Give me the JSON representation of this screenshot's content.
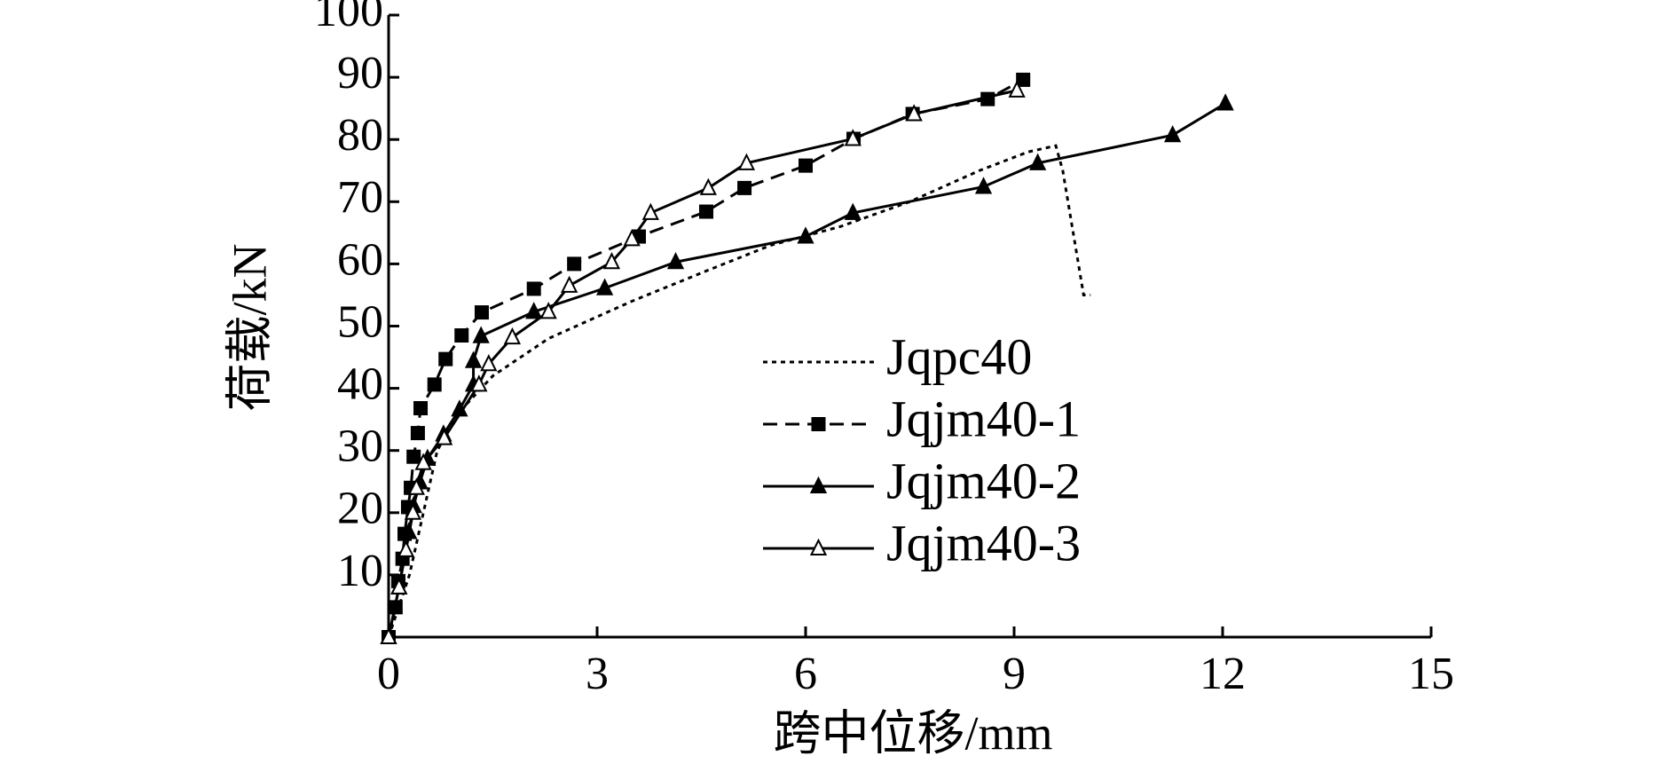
{
  "chart_data": {
    "type": "line",
    "xlabel": "跨中位移/mm",
    "ylabel": "荷载/kN",
    "xlim": [
      0,
      15
    ],
    "xticks": [
      0,
      3,
      6,
      9,
      12,
      15
    ],
    "ylim": [
      0,
      100
    ],
    "yticks": [
      10,
      20,
      30,
      40,
      50,
      60,
      70,
      80,
      90,
      100
    ],
    "legend": "center",
    "series": [
      {
        "name": "Jqpc40",
        "color": "#000000",
        "line_style": "dotted",
        "marker": "none",
        "x": [
          0,
          0.3,
          0.5,
          0.7,
          1.0,
          1.5,
          2.3,
          3.5,
          4.6,
          5.5,
          6.5,
          7.5,
          8.5,
          9.2,
          9.6,
          9.7,
          10.0,
          10.1
        ],
        "values": [
          0,
          10,
          20,
          30,
          36,
          42,
          48,
          54,
          59,
          63,
          66,
          70,
          75,
          78,
          79,
          75,
          55,
          55
        ]
      },
      {
        "name": "Jqjm40-1",
        "color": "#000000",
        "line_style": "dashed",
        "marker": "square",
        "x": [
          0,
          0.1,
          0.14,
          0.2,
          0.23,
          0.28,
          0.32,
          0.36,
          0.42,
          0.46,
          0.66,
          0.82,
          1.05,
          1.34,
          2.09,
          2.67,
          3.6,
          4.57,
          5.12,
          6.0,
          6.69,
          7.54,
          8.62,
          9.13
        ],
        "values": [
          0,
          4.8,
          9,
          12.6,
          16.6,
          20.9,
          24,
          29,
          32.8,
          36.8,
          40.6,
          44.7,
          48.5,
          52.2,
          56,
          60,
          64.4,
          68.4,
          72.2,
          75.8,
          80.1,
          84.1,
          86.5,
          89.6
        ]
      },
      {
        "name": "Jqjm40-2",
        "color": "#000000",
        "line_style": "solid",
        "marker": "triangle",
        "x": [
          0,
          0.15,
          0.29,
          0.36,
          0.45,
          0.56,
          0.79,
          1.02,
          1.22,
          1.22,
          1.33,
          2.09,
          3.11,
          4.13,
          6.0,
          6.68,
          8.56,
          9.34,
          11.28,
          12.04
        ],
        "values": [
          0,
          8,
          16.9,
          21.1,
          24.9,
          28.7,
          32.6,
          36.6,
          40.6,
          44.4,
          48.4,
          52.3,
          56.1,
          60.3,
          64.4,
          68.2,
          72.4,
          76.2,
          80.7,
          85.8
        ]
      },
      {
        "name": "Jqjm40-3",
        "color": "#000000",
        "line_style": "solid",
        "marker": "triangle-open",
        "x": [
          0,
          0.15,
          0.25,
          0.35,
          0.4,
          0.5,
          0.8,
          1.3,
          1.44,
          1.78,
          2.3,
          2.6,
          3.21,
          3.5,
          3.77,
          4.6,
          5.15,
          6.68,
          7.56,
          9.04
        ],
        "values": [
          0,
          8,
          14,
          20,
          24,
          28,
          32,
          40.6,
          43.9,
          48.2,
          52.3,
          56.5,
          60.3,
          64,
          68.2,
          72.2,
          76.2,
          80.1,
          84.1,
          87.9
        ]
      }
    ]
  }
}
